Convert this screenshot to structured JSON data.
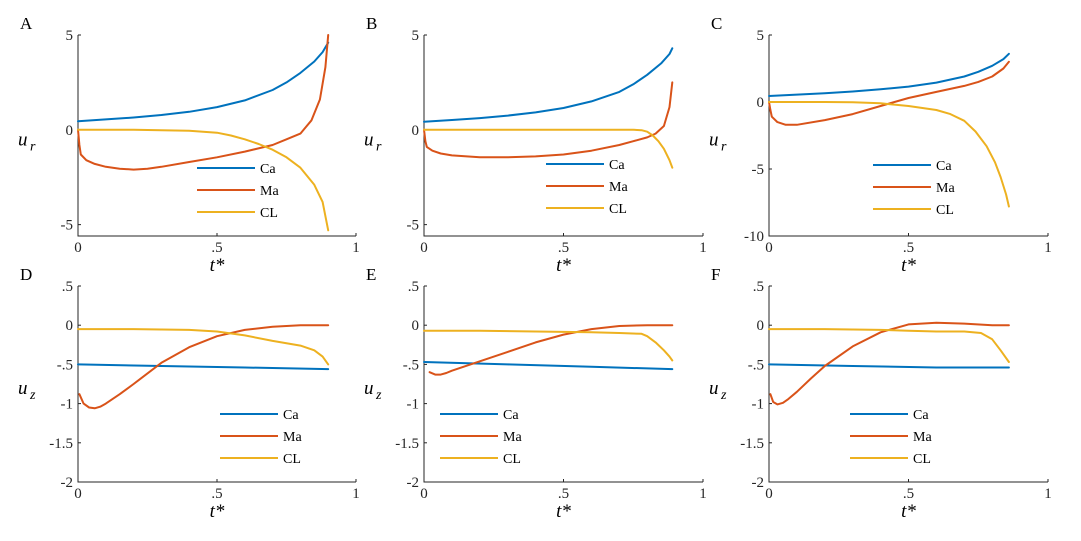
{
  "colors": {
    "Ca": "#0072BD",
    "Ma": "#D95319",
    "CL": "#EDB120",
    "axis": "#262626"
  },
  "chart_data": [
    {
      "panel": "A",
      "type": "line",
      "xlabel": "t*",
      "ylabel": "u",
      "ylabel_sub": "r",
      "xlim": [
        0,
        1
      ],
      "ylim": [
        -5.6,
        5
      ],
      "xticks": [
        0,
        0.5,
        1
      ],
      "yticks": [
        5,
        0,
        -5
      ],
      "legend_position": "bottom-right",
      "series": [
        {
          "name": "Ca",
          "x": [
            0.0,
            0.1,
            0.2,
            0.3,
            0.4,
            0.5,
            0.6,
            0.7,
            0.75,
            0.8,
            0.85,
            0.88,
            0.9
          ],
          "y": [
            0.45,
            0.55,
            0.65,
            0.78,
            0.95,
            1.2,
            1.55,
            2.1,
            2.5,
            3.0,
            3.6,
            4.1,
            4.6
          ]
        },
        {
          "name": "Ma",
          "x": [
            0.0,
            0.005,
            0.01,
            0.03,
            0.06,
            0.1,
            0.15,
            0.2,
            0.25,
            0.3,
            0.4,
            0.5,
            0.6,
            0.7,
            0.75,
            0.8,
            0.84,
            0.87,
            0.89,
            0.9
          ],
          "y": [
            0,
            -0.8,
            -1.3,
            -1.6,
            -1.8,
            -1.95,
            -2.05,
            -2.1,
            -2.05,
            -1.95,
            -1.7,
            -1.45,
            -1.15,
            -0.8,
            -0.5,
            -0.2,
            0.5,
            1.6,
            3.3,
            5.0
          ]
        },
        {
          "name": "CL",
          "x": [
            0.0,
            0.1,
            0.2,
            0.3,
            0.4,
            0.5,
            0.55,
            0.6,
            0.65,
            0.7,
            0.75,
            0.8,
            0.85,
            0.88,
            0.9
          ],
          "y": [
            0,
            0,
            0,
            -0.02,
            -0.05,
            -0.15,
            -0.3,
            -0.5,
            -0.75,
            -1.05,
            -1.45,
            -2.0,
            -2.9,
            -3.8,
            -5.3
          ]
        }
      ]
    },
    {
      "panel": "B",
      "type": "line",
      "xlabel": "t*",
      "ylabel": "u",
      "ylabel_sub": "r",
      "xlim": [
        0,
        1
      ],
      "ylim": [
        -5.6,
        5
      ],
      "xticks": [
        0,
        0.5,
        1
      ],
      "yticks": [
        5,
        0,
        -5
      ],
      "legend_position": "bottom-right",
      "series": [
        {
          "name": "Ca",
          "x": [
            0.0,
            0.1,
            0.2,
            0.3,
            0.4,
            0.5,
            0.6,
            0.7,
            0.75,
            0.8,
            0.85,
            0.88,
            0.89
          ],
          "y": [
            0.42,
            0.52,
            0.62,
            0.75,
            0.92,
            1.15,
            1.5,
            2.0,
            2.4,
            2.9,
            3.5,
            4.0,
            4.3
          ]
        },
        {
          "name": "Ma",
          "x": [
            0.0,
            0.005,
            0.01,
            0.03,
            0.06,
            0.1,
            0.2,
            0.3,
            0.4,
            0.5,
            0.6,
            0.7,
            0.75,
            0.8,
            0.83,
            0.86,
            0.88,
            0.89
          ],
          "y": [
            0,
            -0.6,
            -0.9,
            -1.1,
            -1.25,
            -1.35,
            -1.45,
            -1.45,
            -1.4,
            -1.3,
            -1.1,
            -0.8,
            -0.6,
            -0.4,
            -0.2,
            0.2,
            1.2,
            2.5
          ]
        },
        {
          "name": "CL",
          "x": [
            0.0,
            0.2,
            0.4,
            0.6,
            0.7,
            0.75,
            0.78,
            0.8,
            0.82,
            0.84,
            0.86,
            0.88,
            0.89
          ],
          "y": [
            0,
            0,
            0,
            0,
            0,
            0,
            -0.02,
            -0.1,
            -0.3,
            -0.6,
            -1.0,
            -1.6,
            -2.0
          ]
        }
      ]
    },
    {
      "panel": "C",
      "type": "line",
      "xlabel": "t*",
      "ylabel": "u",
      "ylabel_sub": "r",
      "xlim": [
        0,
        1
      ],
      "ylim": [
        -10,
        5
      ],
      "xticks": [
        0,
        0.5,
        1
      ],
      "yticks": [
        5,
        0,
        -5,
        -10
      ],
      "legend_position": "bottom-right",
      "series": [
        {
          "name": "Ca",
          "x": [
            0.0,
            0.1,
            0.2,
            0.3,
            0.4,
            0.5,
            0.6,
            0.7,
            0.75,
            0.8,
            0.84,
            0.86
          ],
          "y": [
            0.45,
            0.55,
            0.65,
            0.78,
            0.95,
            1.15,
            1.45,
            1.9,
            2.25,
            2.7,
            3.2,
            3.6
          ]
        },
        {
          "name": "Ma",
          "x": [
            0.0,
            0.005,
            0.01,
            0.03,
            0.06,
            0.1,
            0.2,
            0.3,
            0.4,
            0.5,
            0.6,
            0.7,
            0.75,
            0.8,
            0.84,
            0.86
          ],
          "y": [
            0,
            -0.6,
            -1.1,
            -1.5,
            -1.7,
            -1.7,
            -1.35,
            -0.9,
            -0.3,
            0.3,
            0.75,
            1.2,
            1.5,
            1.9,
            2.5,
            3.0
          ]
        },
        {
          "name": "CL",
          "x": [
            0.0,
            0.1,
            0.2,
            0.3,
            0.4,
            0.5,
            0.6,
            0.65,
            0.7,
            0.74,
            0.78,
            0.81,
            0.83,
            0.85,
            0.86
          ],
          "y": [
            0,
            0,
            0,
            -0.02,
            -0.1,
            -0.3,
            -0.6,
            -0.9,
            -1.4,
            -2.2,
            -3.3,
            -4.5,
            -5.6,
            -6.9,
            -7.8
          ]
        }
      ]
    },
    {
      "panel": "D",
      "type": "line",
      "xlabel": "t*",
      "ylabel": "u",
      "ylabel_sub": "z",
      "xlim": [
        0,
        1
      ],
      "ylim": [
        -2,
        0.5
      ],
      "xticks": [
        0,
        0.5,
        1
      ],
      "yticks": [
        0.5,
        0,
        -0.5,
        -1,
        -1.5,
        -2
      ],
      "legend_position": "bottom-right",
      "series": [
        {
          "name": "Ca",
          "x": [
            0.0,
            0.3,
            0.6,
            0.9
          ],
          "y": [
            -0.5,
            -0.52,
            -0.54,
            -0.56
          ]
        },
        {
          "name": "Ma",
          "x": [
            0.005,
            0.02,
            0.04,
            0.06,
            0.08,
            0.1,
            0.15,
            0.2,
            0.3,
            0.4,
            0.5,
            0.6,
            0.7,
            0.8,
            0.9
          ],
          "y": [
            -0.88,
            -1.0,
            -1.05,
            -1.06,
            -1.04,
            -1.0,
            -0.88,
            -0.75,
            -0.48,
            -0.28,
            -0.14,
            -0.06,
            -0.02,
            0.0,
            0.0
          ]
        },
        {
          "name": "CL",
          "x": [
            0.0,
            0.2,
            0.4,
            0.5,
            0.6,
            0.7,
            0.8,
            0.85,
            0.88,
            0.9
          ],
          "y": [
            -0.05,
            -0.05,
            -0.06,
            -0.08,
            -0.13,
            -0.2,
            -0.26,
            -0.32,
            -0.4,
            -0.5
          ]
        }
      ]
    },
    {
      "panel": "E",
      "type": "line",
      "xlabel": "t*",
      "ylabel": "u",
      "ylabel_sub": "z",
      "xlim": [
        0,
        1
      ],
      "ylim": [
        -2,
        0.5
      ],
      "xticks": [
        0,
        0.5,
        1
      ],
      "yticks": [
        0.5,
        0,
        -0.5,
        -1,
        -1.5,
        -2
      ],
      "legend_position": "bottom-right",
      "series": [
        {
          "name": "Ca",
          "x": [
            0.0,
            0.3,
            0.6,
            0.89
          ],
          "y": [
            -0.47,
            -0.5,
            -0.53,
            -0.56
          ]
        },
        {
          "name": "Ma",
          "x": [
            0.02,
            0.04,
            0.06,
            0.08,
            0.1,
            0.2,
            0.3,
            0.4,
            0.5,
            0.6,
            0.7,
            0.8,
            0.89
          ],
          "y": [
            -0.6,
            -0.63,
            -0.63,
            -0.61,
            -0.58,
            -0.46,
            -0.34,
            -0.22,
            -0.12,
            -0.05,
            -0.01,
            0.0,
            0.0
          ]
        },
        {
          "name": "CL",
          "x": [
            0.0,
            0.2,
            0.4,
            0.6,
            0.7,
            0.78,
            0.8,
            0.83,
            0.86,
            0.88,
            0.89
          ],
          "y": [
            -0.07,
            -0.07,
            -0.08,
            -0.09,
            -0.1,
            -0.11,
            -0.14,
            -0.22,
            -0.32,
            -0.4,
            -0.45
          ]
        }
      ]
    },
    {
      "panel": "F",
      "type": "line",
      "xlabel": "t*",
      "ylabel": "u",
      "ylabel_sub": "z",
      "xlim": [
        0,
        1
      ],
      "ylim": [
        -2,
        0.5
      ],
      "xticks": [
        0,
        0.5,
        1
      ],
      "yticks": [
        0.5,
        0,
        -0.5,
        -1,
        -1.5,
        -2
      ],
      "legend_position": "bottom-right",
      "series": [
        {
          "name": "Ca",
          "x": [
            0.0,
            0.3,
            0.6,
            0.86
          ],
          "y": [
            -0.5,
            -0.52,
            -0.54,
            -0.54
          ]
        },
        {
          "name": "Ma",
          "x": [
            0.005,
            0.015,
            0.03,
            0.05,
            0.07,
            0.1,
            0.15,
            0.2,
            0.3,
            0.4,
            0.5,
            0.6,
            0.7,
            0.8,
            0.86
          ],
          "y": [
            -0.88,
            -0.98,
            -1.01,
            -0.99,
            -0.94,
            -0.85,
            -0.68,
            -0.52,
            -0.27,
            -0.09,
            0.01,
            0.03,
            0.02,
            0.0,
            0.0
          ]
        },
        {
          "name": "CL",
          "x": [
            0.0,
            0.2,
            0.4,
            0.5,
            0.6,
            0.7,
            0.76,
            0.8,
            0.83,
            0.86
          ],
          "y": [
            -0.05,
            -0.05,
            -0.06,
            -0.07,
            -0.08,
            -0.08,
            -0.1,
            -0.18,
            -0.32,
            -0.47
          ]
        }
      ]
    }
  ]
}
